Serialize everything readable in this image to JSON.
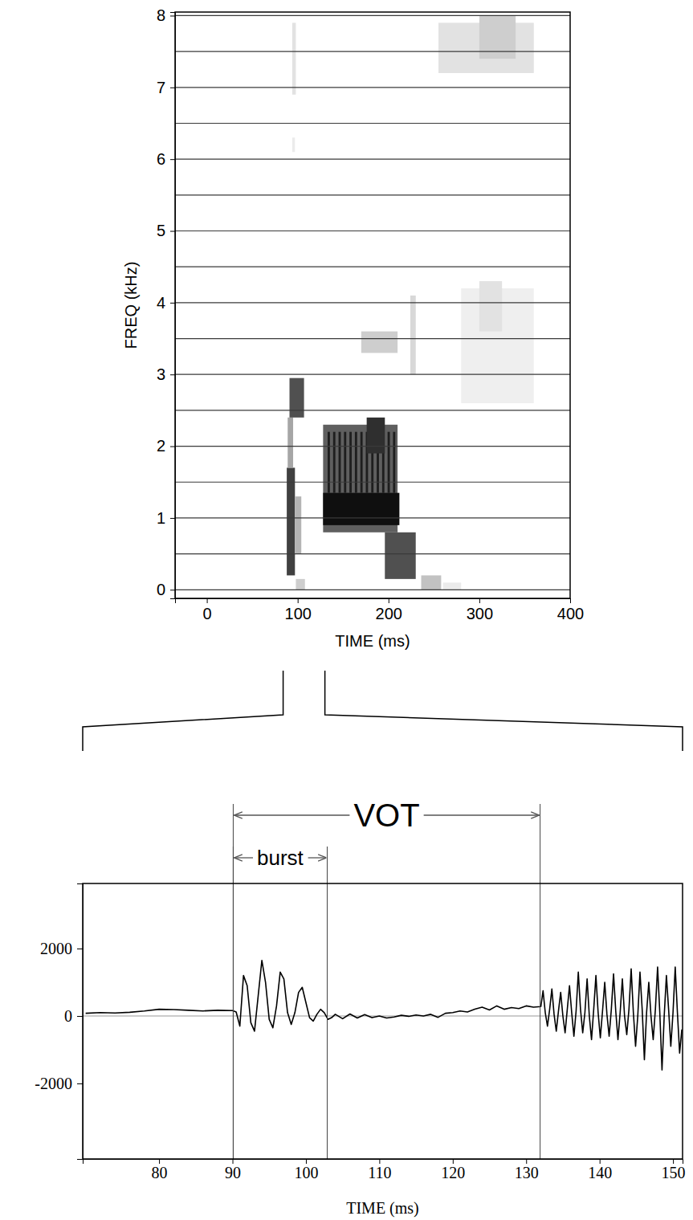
{
  "chart_data": [
    {
      "type": "spectrogram",
      "x_label": "TIME (ms)",
      "y_label": "FREQ (kHz)",
      "xlim": [
        -35,
        400
      ],
      "ylim": [
        -0.12,
        8.05
      ],
      "xticks": [
        0,
        100,
        200,
        300,
        400
      ],
      "yticks": [
        0,
        1,
        2,
        3,
        4,
        5,
        6,
        7,
        8
      ],
      "ygrid": [
        0,
        0.5,
        1,
        1.5,
        2,
        2.5,
        3,
        3.5,
        4,
        4.5,
        5,
        5.5,
        6,
        6.5,
        7,
        7.5,
        8
      ],
      "grid": true,
      "zoom": [
        84,
        130
      ],
      "cells": [
        {
          "t": [
            88,
            97
          ],
          "f": [
            0.2,
            1.7
          ],
          "level": 0.8
        },
        {
          "t": [
            89,
            95
          ],
          "f": [
            1.7,
            2.4
          ],
          "level": 0.45
        },
        {
          "t": [
            91,
            107
          ],
          "f": [
            2.4,
            2.95
          ],
          "level": 0.75
        },
        {
          "t": [
            97,
            104
          ],
          "f": [
            0.5,
            1.3
          ],
          "level": 0.4
        },
        {
          "t": [
            98,
            108
          ],
          "f": [
            0,
            0.15
          ],
          "level": 0.3
        },
        {
          "t": [
            94,
            98
          ],
          "f": [
            6.9,
            7.9
          ],
          "level": 0.2
        },
        {
          "t": [
            94,
            97
          ],
          "f": [
            6.1,
            6.3
          ],
          "level": 0.15
        },
        {
          "t": [
            128,
            210
          ],
          "f": [
            0.8,
            2.3
          ],
          "level": 0.7
        },
        {
          "t": [
            128,
            212
          ],
          "f": [
            0.9,
            1.35
          ],
          "level": 0.95
        },
        {
          "t": [
            133,
            135.5
          ],
          "f": [
            1.35,
            2.2
          ],
          "level": 0.9
        },
        {
          "t": [
            139,
            141.5
          ],
          "f": [
            1.35,
            2.2
          ],
          "level": 0.9
        },
        {
          "t": [
            145,
            147.5
          ],
          "f": [
            1.35,
            2.2
          ],
          "level": 0.9
        },
        {
          "t": [
            151,
            153.5
          ],
          "f": [
            1.35,
            2.2
          ],
          "level": 0.9
        },
        {
          "t": [
            157,
            159.5
          ],
          "f": [
            1.35,
            2.2
          ],
          "level": 0.9
        },
        {
          "t": [
            163,
            165.5
          ],
          "f": [
            1.35,
            2.2
          ],
          "level": 0.9
        },
        {
          "t": [
            169,
            171.5
          ],
          "f": [
            1.35,
            2.2
          ],
          "level": 0.9
        },
        {
          "t": [
            175,
            177.5
          ],
          "f": [
            1.35,
            2.2
          ],
          "level": 0.9
        },
        {
          "t": [
            181,
            183.5
          ],
          "f": [
            1.35,
            2.2
          ],
          "level": 0.9
        },
        {
          "t": [
            187,
            189.5
          ],
          "f": [
            1.35,
            2.2
          ],
          "level": 0.9
        },
        {
          "t": [
            193,
            195.5
          ],
          "f": [
            1.35,
            2.2
          ],
          "level": 0.9
        },
        {
          "t": [
            199,
            201.5
          ],
          "f": [
            1.35,
            2.2
          ],
          "level": 0.9
        },
        {
          "t": [
            205,
            207.5
          ],
          "f": [
            1.35,
            2.2
          ],
          "level": 0.9
        },
        {
          "t": [
            176,
            196
          ],
          "f": [
            1.9,
            2.4
          ],
          "level": 0.85
        },
        {
          "t": [
            196,
            230
          ],
          "f": [
            0.15,
            0.8
          ],
          "level": 0.75
        },
        {
          "t": [
            170,
            210
          ],
          "f": [
            3.3,
            3.6
          ],
          "level": 0.3
        },
        {
          "t": [
            224,
            230
          ],
          "f": [
            3.0,
            4.1
          ],
          "level": 0.25
        },
        {
          "t": [
            236,
            258
          ],
          "f": [
            0,
            0.2
          ],
          "level": 0.35
        },
        {
          "t": [
            260,
            280
          ],
          "f": [
            0,
            0.1
          ],
          "level": 0.15
        },
        {
          "t": [
            255,
            360
          ],
          "f": [
            7.2,
            7.9
          ],
          "level": 0.2
        },
        {
          "t": [
            300,
            340
          ],
          "f": [
            7.4,
            8.0
          ],
          "level": 0.3
        },
        {
          "t": [
            280,
            360
          ],
          "f": [
            2.6,
            4.2
          ],
          "level": 0.12
        },
        {
          "t": [
            300,
            325
          ],
          "f": [
            3.6,
            4.3
          ],
          "level": 0.2
        }
      ]
    },
    {
      "type": "line",
      "x_label": "TIME (ms)",
      "xlim": [
        69.6,
        151.3
      ],
      "ylim": [
        -4240,
        3930
      ],
      "xticks": [
        80,
        90,
        100,
        110,
        120,
        130,
        140,
        150
      ],
      "yticks": [
        -2000,
        0,
        2000
      ],
      "reference_line": 0,
      "annotations": [
        {
          "text": "VOT",
          "x": [
            90.1,
            131.9
          ]
        },
        {
          "text": "burst",
          "x": [
            90.1,
            102.9
          ]
        }
      ],
      "x": [
        70,
        72,
        74,
        76,
        78,
        80,
        82,
        84,
        86,
        88,
        90,
        90.5,
        91,
        91.5,
        92,
        92.5,
        93,
        93.5,
        94,
        94.5,
        95,
        95.5,
        96,
        96.5,
        97,
        97.5,
        98,
        98.5,
        99,
        99.5,
        100,
        100.5,
        101,
        101.5,
        102,
        102.5,
        103,
        103.5,
        104,
        105,
        106,
        107,
        108,
        109,
        110,
        111,
        112,
        113,
        114,
        115,
        116,
        117,
        118,
        119,
        120,
        121,
        122,
        123,
        124,
        125,
        126,
        127,
        128,
        129,
        130,
        131,
        132,
        132.3,
        132.6,
        132.9,
        133.2,
        133.5,
        133.8,
        134.1,
        134.4,
        134.7,
        135,
        135.3,
        135.6,
        135.9,
        136.2,
        136.5,
        136.8,
        137.1,
        137.4,
        137.7,
        138,
        138.3,
        138.6,
        138.9,
        139.2,
        139.5,
        139.8,
        140.1,
        140.4,
        140.7,
        141,
        141.3,
        141.6,
        141.9,
        142.2,
        142.5,
        142.8,
        143.1,
        143.4,
        143.7,
        144,
        144.3,
        144.6,
        144.9,
        145.2,
        145.5,
        145.8,
        146.1,
        146.4,
        146.7,
        147,
        147.3,
        147.6,
        147.9,
        148.2,
        148.5,
        148.8,
        149.1,
        149.4,
        149.7,
        150,
        150.3,
        150.6,
        150.9,
        151.2
      ],
      "series": [
        {
          "color": "#000000",
          "values": [
            80,
            100,
            90,
            110,
            150,
            200,
            190,
            170,
            150,
            170,
            160,
            120,
            -300,
            1200,
            900,
            -200,
            -450,
            600,
            1650,
            1000,
            -100,
            -350,
            300,
            1300,
            1100,
            100,
            -250,
            100,
            700,
            850,
            400,
            -50,
            -150,
            50,
            200,
            100,
            -100,
            -50,
            50,
            -80,
            60,
            -60,
            40,
            -50,
            0,
            -60,
            -30,
            20,
            -10,
            30,
            0,
            50,
            -40,
            80,
            100,
            150,
            120,
            200,
            260,
            180,
            300,
            200,
            250,
            220,
            300,
            260,
            280,
            750,
            100,
            -300,
            200,
            800,
            50,
            -450,
            150,
            700,
            0,
            -500,
            200,
            900,
            100,
            -600,
            150,
            1300,
            200,
            -500,
            100,
            1100,
            0,
            -700,
            200,
            1200,
            100,
            -650,
            150,
            1000,
            50,
            -600,
            200,
            1250,
            150,
            -700,
            100,
            1100,
            0,
            -550,
            200,
            1400,
            100,
            -900,
            0,
            1300,
            200,
            -1300,
            100,
            1000,
            0,
            -700,
            200,
            1450,
            100,
            -1600,
            0,
            1200,
            200,
            -900,
            100,
            1450,
            100,
            -1100,
            -400
          ]
        }
      ]
    }
  ]
}
